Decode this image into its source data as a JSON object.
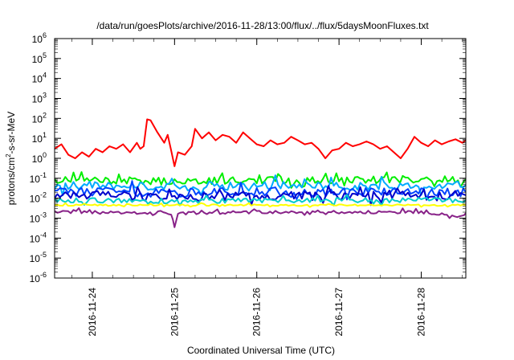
{
  "chart_data": {
    "type": "line",
    "title": "/data/run/goesPlots/archive/2016-11-28/13:00/flux/../flux/5daysMoonFluxes.txt",
    "xlabel": "Coordinated Universal Time (UTC)",
    "ylabel": {
      "prefix": "protons/cm",
      "sup": "2",
      "suffix": "-s-sr-MeV"
    },
    "log_y": true,
    "grid": false,
    "legend": "none",
    "xlim": [
      "2016-11-23T13:00",
      "2016-11-28T13:00"
    ],
    "ylim": [
      1e-06,
      1000000.0
    ],
    "x_ticks": [
      {
        "date": "2016-11-24T00:00",
        "label": "2016-11-24"
      },
      {
        "date": "2016-11-25T00:00",
        "label": "2016-11-25"
      },
      {
        "date": "2016-11-26T00:00",
        "label": "2016-11-26"
      },
      {
        "date": "2016-11-27T00:00",
        "label": "2016-11-27"
      },
      {
        "date": "2016-11-28T00:00",
        "label": "2016-11-28"
      }
    ],
    "y_ticks": [
      {
        "value": 1000000.0,
        "base": "10",
        "exp": "6"
      },
      {
        "value": 100000.0,
        "base": "10",
        "exp": "5"
      },
      {
        "value": 10000.0,
        "base": "10",
        "exp": "4"
      },
      {
        "value": 1000.0,
        "base": "10",
        "exp": "3"
      },
      {
        "value": 100.0,
        "base": "10",
        "exp": "2"
      },
      {
        "value": 10.0,
        "base": "10",
        "exp": "1"
      },
      {
        "value": 1.0,
        "base": "10",
        "exp": "0"
      },
      {
        "value": 0.1,
        "base": "10",
        "exp": "-1"
      },
      {
        "value": 0.01,
        "base": "10",
        "exp": "-2"
      },
      {
        "value": 0.001,
        "base": "10",
        "exp": "-3"
      },
      {
        "value": 0.0001,
        "base": "10",
        "exp": "-4"
      },
      {
        "value": 1e-05,
        "base": "10",
        "exp": "-5"
      },
      {
        "value": 1e-06,
        "base": "10",
        "exp": "-6"
      }
    ],
    "series": [
      {
        "color": "#ff0000",
        "x": [
          "2016-11-23T13:00",
          "2016-11-23T15:00",
          "2016-11-23T17:00",
          "2016-11-23T19:00",
          "2016-11-23T21:00",
          "2016-11-23T23:00",
          "2016-11-24T01:00",
          "2016-11-24T03:00",
          "2016-11-24T05:00",
          "2016-11-24T07:00",
          "2016-11-24T09:00",
          "2016-11-24T11:00",
          "2016-11-24T13:00",
          "2016-11-24T14:00",
          "2016-11-24T15:00",
          "2016-11-24T16:00",
          "2016-11-24T17:00",
          "2016-11-24T19:00",
          "2016-11-24T21:00",
          "2016-11-24T22:00",
          "2016-11-24T23:00",
          "2016-11-25T00:00",
          "2016-11-25T01:00",
          "2016-11-25T03:00",
          "2016-11-25T05:00",
          "2016-11-25T06:00",
          "2016-11-25T08:00",
          "2016-11-25T10:00",
          "2016-11-25T12:00",
          "2016-11-25T14:00",
          "2016-11-25T16:00",
          "2016-11-25T18:00",
          "2016-11-25T20:00",
          "2016-11-25T22:00",
          "2016-11-26T00:00",
          "2016-11-26T02:00",
          "2016-11-26T04:00",
          "2016-11-26T06:00",
          "2016-11-26T08:00",
          "2016-11-26T10:00",
          "2016-11-26T12:00",
          "2016-11-26T14:00",
          "2016-11-26T16:00",
          "2016-11-26T18:00",
          "2016-11-26T20:00",
          "2016-11-26T22:00",
          "2016-11-27T00:00",
          "2016-11-27T02:00",
          "2016-11-27T04:00",
          "2016-11-27T06:00",
          "2016-11-27T08:00",
          "2016-11-27T10:00",
          "2016-11-27T12:00",
          "2016-11-27T14:00",
          "2016-11-27T16:00",
          "2016-11-27T18:00",
          "2016-11-27T20:00",
          "2016-11-27T22:00",
          "2016-11-28T00:00",
          "2016-11-28T02:00",
          "2016-11-28T04:00",
          "2016-11-28T06:00",
          "2016-11-28T08:00",
          "2016-11-28T10:00",
          "2016-11-28T12:00",
          "2016-11-28T13:00"
        ],
        "values": [
          3,
          5,
          1.5,
          1,
          2,
          1.2,
          3,
          2,
          4,
          3,
          5,
          2,
          6,
          3,
          4,
          90,
          80,
          20,
          6,
          15,
          2.5,
          0.4,
          2,
          1.5,
          4,
          30,
          10,
          20,
          8,
          15,
          12,
          6,
          20,
          10,
          5,
          4,
          8,
          5,
          6,
          12,
          8,
          5,
          6,
          3,
          1,
          2.5,
          3,
          6,
          4,
          5,
          7,
          5,
          3,
          4,
          2,
          1,
          3,
          12,
          6,
          4,
          8,
          5,
          7,
          9,
          6,
          8
        ]
      },
      {
        "color": "#00ee00",
        "x": [
          "2016-11-23T13:00",
          "2016-11-24T00:00",
          "2016-11-25T00:00",
          "2016-11-26T00:00",
          "2016-11-27T00:00",
          "2016-11-28T00:00",
          "2016-11-28T13:00"
        ],
        "values": [
          0.08,
          0.08,
          0.07,
          0.08,
          0.08,
          0.09,
          0.09
        ],
        "amp": 0.18,
        "seed": 11
      },
      {
        "color": "#00aaff",
        "x": [
          "2016-11-23T13:00",
          "2016-11-24T00:00",
          "2016-11-25T00:00",
          "2016-11-26T00:00",
          "2016-11-27T00:00",
          "2016-11-28T00:00",
          "2016-11-28T13:00"
        ],
        "values": [
          0.04,
          0.045,
          0.035,
          0.045,
          0.04,
          0.045,
          0.045
        ],
        "amp": 0.2,
        "seed": 23
      },
      {
        "color": "#0044ff",
        "x": [
          "2016-11-23T13:00",
          "2016-11-24T00:00",
          "2016-11-25T00:00",
          "2016-11-26T00:00",
          "2016-11-27T00:00",
          "2016-11-28T00:00",
          "2016-11-28T13:00"
        ],
        "values": [
          0.02,
          0.022,
          0.018,
          0.022,
          0.02,
          0.022,
          0.02
        ],
        "amp": 0.22,
        "seed": 37
      },
      {
        "color": "#0000cc",
        "x": [
          "2016-11-23T13:00",
          "2016-11-24T00:00",
          "2016-11-25T00:00",
          "2016-11-26T00:00",
          "2016-11-27T00:00",
          "2016-11-28T00:00",
          "2016-11-28T13:00"
        ],
        "values": [
          0.013,
          0.014,
          0.011,
          0.014,
          0.013,
          0.014,
          0.014
        ],
        "amp": 0.22,
        "seed": 51
      },
      {
        "color": "#00cccc",
        "x": [
          "2016-11-23T13:00",
          "2016-11-24T00:00",
          "2016-11-25T00:00",
          "2016-11-26T00:00",
          "2016-11-27T00:00",
          "2016-11-28T00:00",
          "2016-11-28T13:00"
        ],
        "values": [
          0.008,
          0.008,
          0.007,
          0.008,
          0.008,
          0.008,
          0.008
        ],
        "amp": 0.12,
        "seed": 67
      },
      {
        "color": "#ffff00",
        "x": [
          "2016-11-23T13:00",
          "2016-11-24T00:00",
          "2016-11-25T00:00",
          "2016-11-26T00:00",
          "2016-11-27T00:00",
          "2016-11-28T00:00",
          "2016-11-28T13:00"
        ],
        "values": [
          0.0045,
          0.0045,
          0.0045,
          0.0045,
          0.0045,
          0.0045,
          0.0045
        ],
        "amp": 0.04,
        "seed": 79
      },
      {
        "color": "#882288",
        "x": [
          "2016-11-23T13:00",
          "2016-11-24T00:00",
          "2016-11-24T23:00",
          "2016-11-25T00:00",
          "2016-11-25T01:00",
          "2016-11-26T00:00",
          "2016-11-27T00:00",
          "2016-11-28T00:00",
          "2016-11-28T12:00",
          "2016-11-28T13:00"
        ],
        "values": [
          0.002,
          0.002,
          0.0018,
          0.0004,
          0.0018,
          0.002,
          0.002,
          0.002,
          0.0012,
          0.0018
        ],
        "amp": 0.08,
        "seed": 91
      }
    ]
  }
}
